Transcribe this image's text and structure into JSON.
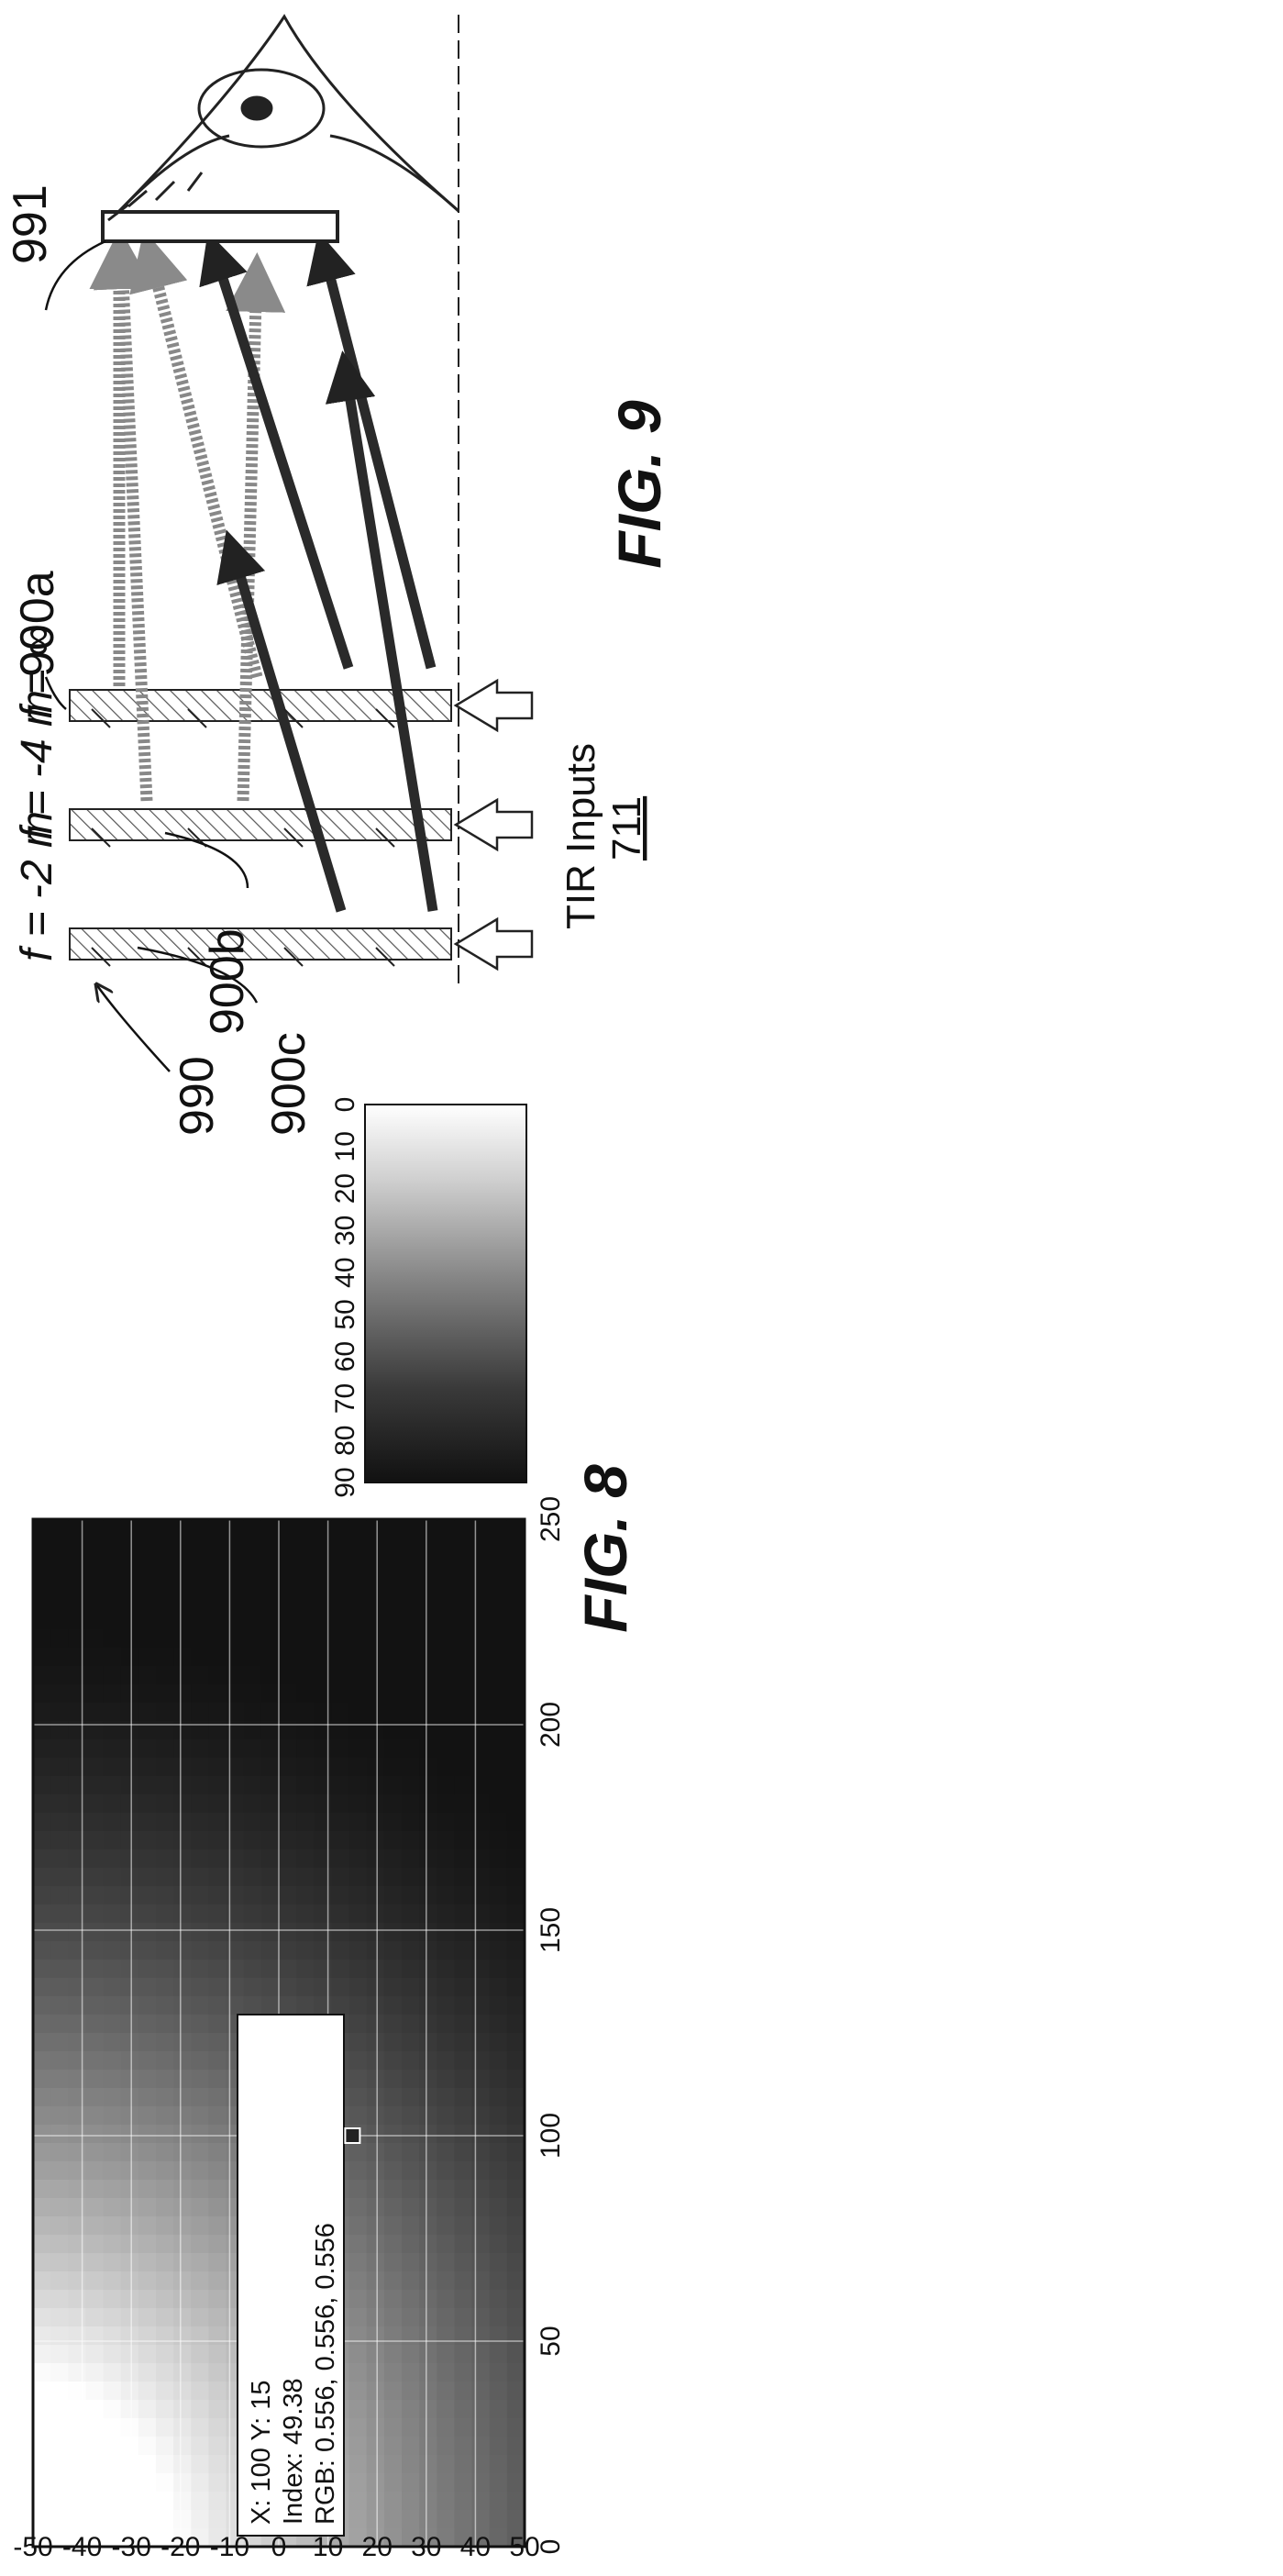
{
  "fig8": {
    "caption": "FIG. 8",
    "chart_data": {
      "type": "heatmap",
      "x_ticks": [
        0,
        50,
        100,
        150,
        200,
        250
      ],
      "y_ticks": [
        -50,
        -40,
        -30,
        -20,
        -10,
        0,
        10,
        20,
        30,
        40,
        50
      ],
      "xlim": [
        0,
        250
      ],
      "ylim": [
        -50,
        50
      ],
      "colorbar_ticks": [
        0,
        10,
        20,
        30,
        40,
        50,
        60,
        70,
        80,
        90
      ],
      "colorbar_range": [
        0,
        90
      ],
      "colormap": "gray (dark = 0, light = 90)",
      "grid": true,
      "datatip": {
        "x": 100,
        "y": 15,
        "index": 49.38,
        "rgb": [
          0.556,
          0.556,
          0.556
        ],
        "line1": "X: 100 Y: 15",
        "line2": "Index: 49.38",
        "line3": "RGB: 0.556, 0.556, 0.556"
      }
    }
  },
  "fig9": {
    "caption": "FIG. 9",
    "label_990": "990",
    "label_991": "991",
    "plate_a_label": "900a",
    "plate_b_label": "900b",
    "plate_c_label": "900c",
    "focal_c": "f = -2 m",
    "focal_b": "f = -4 m",
    "focal_a": "f = ∞",
    "tir_label": "TIR Inputs",
    "tir_number": "711"
  }
}
